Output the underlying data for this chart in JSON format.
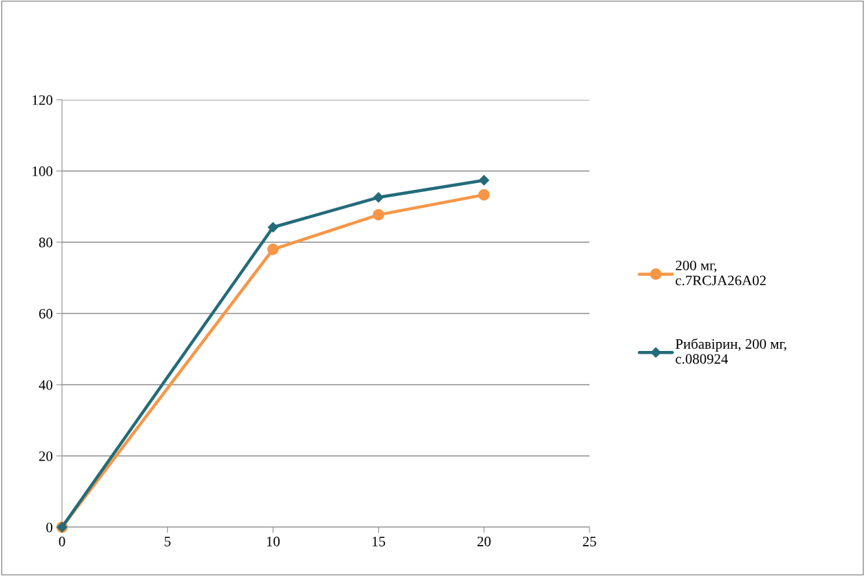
{
  "chart_data": {
    "type": "line",
    "x": [
      0,
      10,
      15,
      20
    ],
    "xlim": [
      0,
      25
    ],
    "xticks": [
      0,
      5,
      10,
      15,
      20,
      25
    ],
    "ylim": [
      0,
      120
    ],
    "yticks": [
      0,
      20,
      40,
      60,
      80,
      100,
      120
    ],
    "grid": "y",
    "legend": "right",
    "line_style": "solid",
    "series": [
      {
        "name": "200 мг, с.7RCJA26A02",
        "color": "#f79646",
        "marker": "circle",
        "values": [
          0,
          78,
          87.7,
          93.3
        ]
      },
      {
        "name": "Рибавірин, 200 мг, с.080924",
        "color": "#236b7a",
        "marker": "diamond",
        "values": [
          0,
          84.2,
          92.6,
          97.4
        ]
      }
    ]
  }
}
